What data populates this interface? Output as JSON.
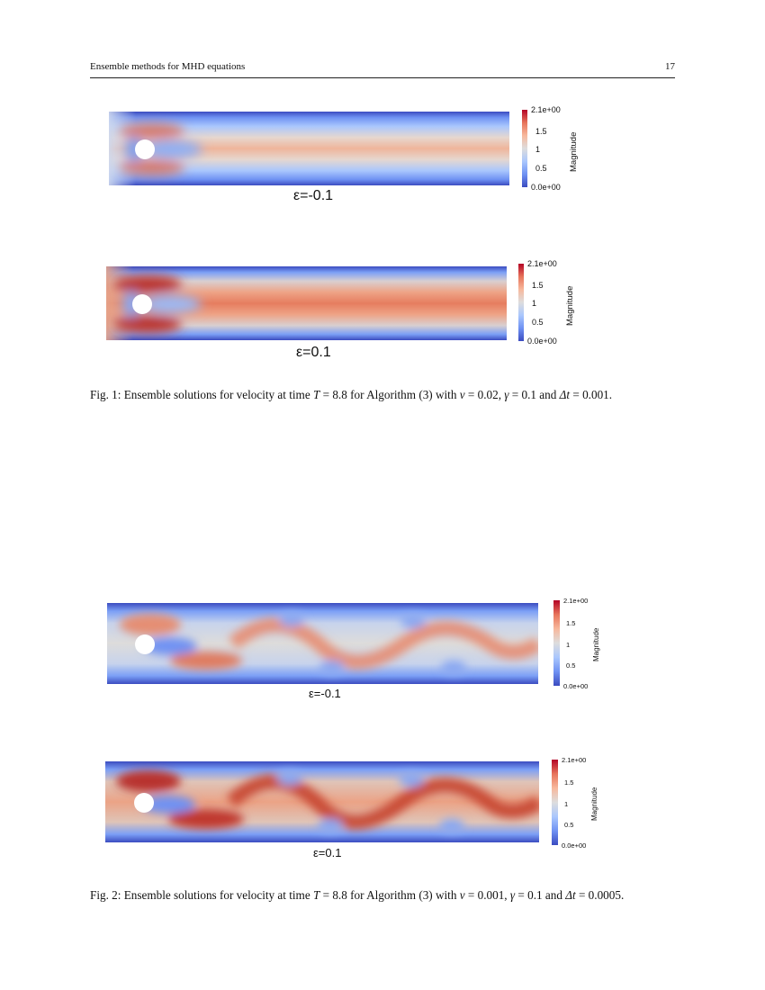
{
  "header": {
    "title": "Ensemble methods for MHD equations",
    "page_number": "17"
  },
  "colorbar": {
    "ticks": [
      "2.1e+00",
      "1.5",
      "1",
      "0.5",
      "0.0e+00"
    ],
    "label": "Magnitude"
  },
  "colormap": [
    "#3b4cc0",
    "#6f92f3",
    "#aac7fd",
    "#dddddd",
    "#f7b89c",
    "#e7745b",
    "#b40426"
  ],
  "figures": [
    {
      "panels": [
        {
          "epsilon_label": "ε=-0.1",
          "regime": "steady",
          "intensity": 0.8
        },
        {
          "epsilon_label": "ε=0.1",
          "regime": "steady",
          "intensity": 1.0
        }
      ],
      "caption": {
        "p1": "Fig. 1: Ensemble solutions for velocity at time ",
        "T": "T",
        "p2": " = 8.8 for Algorithm (3) with ",
        "nu": "ν",
        "p3": " = 0.02, ",
        "gamma": "γ",
        "p4": " = 0.1 and ",
        "dt": "Δt",
        "p5": " = 0.001."
      }
    },
    {
      "panels": [
        {
          "epsilon_label": "ε=-0.1",
          "regime": "vortex-shedding",
          "intensity": 0.8
        },
        {
          "epsilon_label": "ε=0.1",
          "regime": "vortex-shedding",
          "intensity": 1.0
        }
      ],
      "caption": {
        "p1": "Fig. 2: Ensemble solutions for velocity at time ",
        "T": "T",
        "p2": " = 8.8 for Algorithm (3) with ",
        "nu": "ν",
        "p3": " = 0.001, ",
        "gamma": "γ",
        "p4": " = 0.1 and ",
        "dt": "Δt",
        "p5": " = 0.0005."
      }
    }
  ]
}
